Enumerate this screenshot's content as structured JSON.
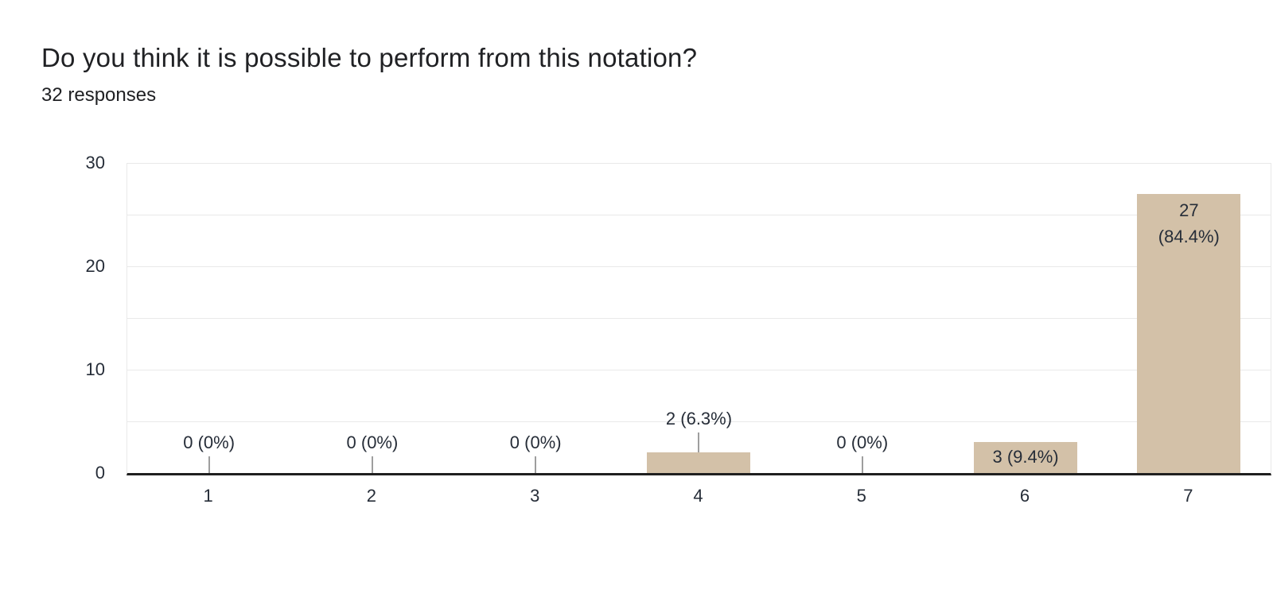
{
  "header": {
    "title": "Do you think it is possible to perform from this notation?",
    "subtitle": "32 responses"
  },
  "chart_data": {
    "type": "bar",
    "title": "Do you think it is possible to perform from this notation?",
    "subtitle": "32 responses",
    "categories": [
      "1",
      "2",
      "3",
      "4",
      "5",
      "6",
      "7"
    ],
    "values": [
      0,
      0,
      0,
      2,
      0,
      3,
      27
    ],
    "value_labels": [
      "0 (0%)",
      "0 (0%)",
      "0 (0%)",
      "2 (6.3%)",
      "0 (0%)",
      "3 (9.4%)",
      "27\n(84.4%)"
    ],
    "xlabel": "",
    "ylabel": "",
    "ylim": [
      0,
      30
    ],
    "yticks_labeled": [
      "30",
      "20",
      "10",
      "0"
    ],
    "gridline_interval": 5,
    "grid": "horizontal",
    "legend": "none",
    "colors": {
      "bar": "#d3c1a8",
      "grid": "#e9e9e9",
      "axis_line": "#1f1f1f",
      "leader_line": "#9e9e9e",
      "label_text": "#262d38",
      "title_text": "#202124",
      "background": "#ffffff"
    }
  }
}
